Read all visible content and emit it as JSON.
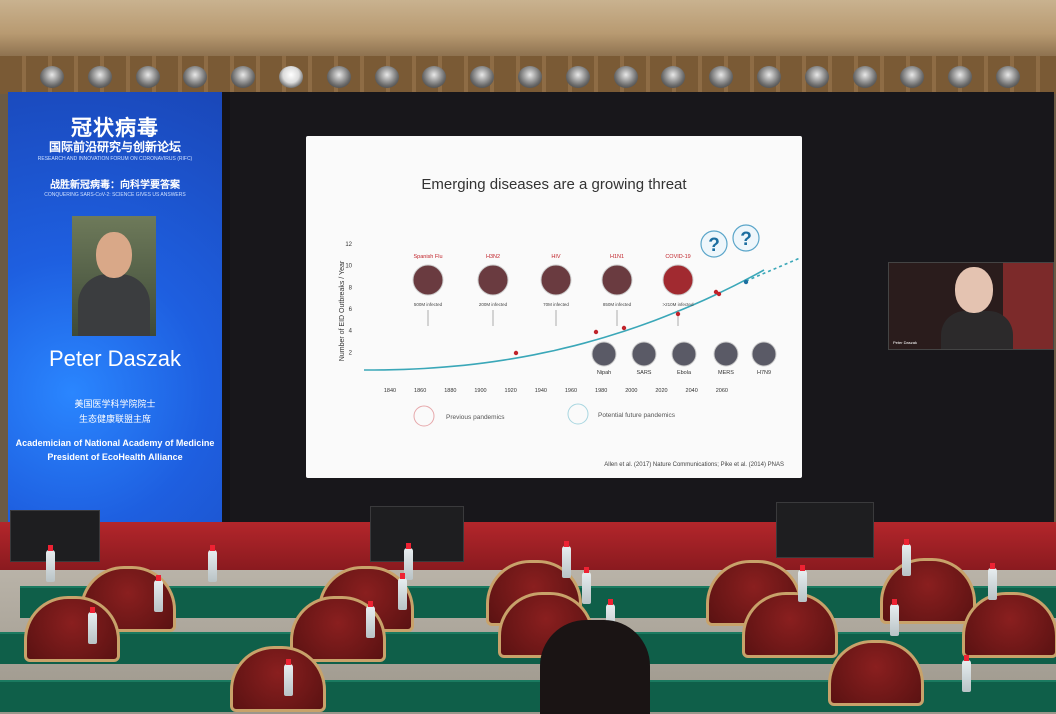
{
  "banner": {
    "title_cn": "冠状病毒",
    "subtitle_cn": "国际前沿研究与创新论坛",
    "subtitle_en": "RESEARCH AND INNOVATION FORUM ON CORONAVIRUS (RIFC)",
    "slogan_cn": "战胜新冠病毒：向科学要答案",
    "slogan_en": "CONQUERING SARS-CoV-2: SCIENCE GIVES US ANSWERS",
    "speaker_name": "Peter Daszak",
    "role_cn_1": "美国医学科学院院士",
    "role_cn_2": "生态健康联盟主席",
    "role_en_1": "Academician of National Academy of Medicine",
    "role_en_2": "President of EcoHealth Alliance",
    "accent": "#1e5fe0"
  },
  "slide": {
    "title": "Emerging diseases are a growing threat",
    "ylabel": "Number of EID Outbreaks / Year",
    "yticks": [
      "2",
      "4",
      "6",
      "8",
      "10",
      "12"
    ],
    "xticks": [
      "1840",
      "1860",
      "1880",
      "1900",
      "1920",
      "1940",
      "1960",
      "1980",
      "2000",
      "2020",
      "2040",
      "2060"
    ],
    "pandemics_top": [
      {
        "name": "Spanish Flu",
        "infected": "500M infected"
      },
      {
        "name": "H3N2",
        "infected": "200M infected"
      },
      {
        "name": "HIV",
        "infected": "70M infected"
      },
      {
        "name": "H1N1",
        "infected": "850M infected"
      },
      {
        "name": "COVID-19",
        "infected": ">210M infected"
      }
    ],
    "outbreaks_bottom": [
      "Nipah",
      "SARS",
      "Ebola",
      "MERS",
      "H7N9"
    ],
    "future_marks": [
      "?",
      "?"
    ],
    "legend": {
      "previous": "Previous pandemics",
      "future": "Potential future pandemics"
    },
    "citation": "Allen et al. (2017) Nature Communications; Pike et al. (2014) PNAS",
    "line_color": "#3aa7b8",
    "pandemic_color": "#c0232a"
  },
  "video": {
    "participant": "Peter Daszak"
  }
}
